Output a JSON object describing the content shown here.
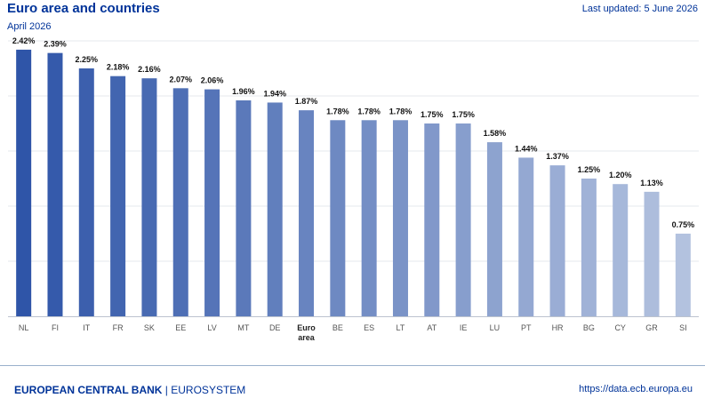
{
  "header": {
    "title": "Euro area and countries",
    "subtitle": "April 2026",
    "last_updated": "Last updated: 5 June 2026"
  },
  "footer": {
    "org_name": "EUROPEAN CENTRAL BANK",
    "separator": "|",
    "system_name": "EUROSYSTEM",
    "url": "https://data.ecb.europa.eu"
  },
  "colors": {
    "bar_dark": "#2f55a8",
    "bar_light": "#b3c2df",
    "gridline": "#e6e8ee",
    "axis": "#bcc3cf",
    "text": "#003399"
  },
  "chart_data": {
    "type": "bar",
    "title": "Euro area and countries",
    "subtitle": "April 2026",
    "categories": [
      "NL",
      "FI",
      "IT",
      "FR",
      "SK",
      "EE",
      "LV",
      "MT",
      "DE",
      "Euro area",
      "BE",
      "ES",
      "LT",
      "AT",
      "IE",
      "LU",
      "PT",
      "HR",
      "BG",
      "CY",
      "GR",
      "SI"
    ],
    "category_lines": [
      [
        "NL"
      ],
      [
        "FI"
      ],
      [
        "IT"
      ],
      [
        "FR"
      ],
      [
        "SK"
      ],
      [
        "EE"
      ],
      [
        "LV"
      ],
      [
        "MT"
      ],
      [
        "DE"
      ],
      [
        "Euro",
        "area"
      ],
      [
        "BE"
      ],
      [
        "ES"
      ],
      [
        "LT"
      ],
      [
        "AT"
      ],
      [
        "IE"
      ],
      [
        "LU"
      ],
      [
        "PT"
      ],
      [
        "HR"
      ],
      [
        "BG"
      ],
      [
        "CY"
      ],
      [
        "GR"
      ],
      [
        "SI"
      ]
    ],
    "highlight_category": "Euro area",
    "values": [
      2.42,
      2.39,
      2.25,
      2.18,
      2.16,
      2.07,
      2.06,
      1.96,
      1.94,
      1.87,
      1.78,
      1.78,
      1.78,
      1.75,
      1.75,
      1.58,
      1.44,
      1.37,
      1.25,
      1.2,
      1.13,
      0.75
    ],
    "data_labels": [
      "2.42%",
      "2.39%",
      "2.25%",
      "2.18%",
      "2.16%",
      "2.07%",
      "2.06%",
      "1.96%",
      "1.94%",
      "1.87%",
      "1.78%",
      "1.78%",
      "1.78%",
      "1.75%",
      "1.75%",
      "1.58%",
      "1.44%",
      "1.37%",
      "1.25%",
      "1.20%",
      "1.13%",
      "0.75%"
    ],
    "ylim": [
      0,
      2.5
    ],
    "y_ticks": [
      0,
      0.5,
      1.0,
      1.5,
      2.0,
      2.5
    ],
    "y_tick_labels_shown": false,
    "grid": true,
    "xlabel": "",
    "ylabel": ""
  }
}
